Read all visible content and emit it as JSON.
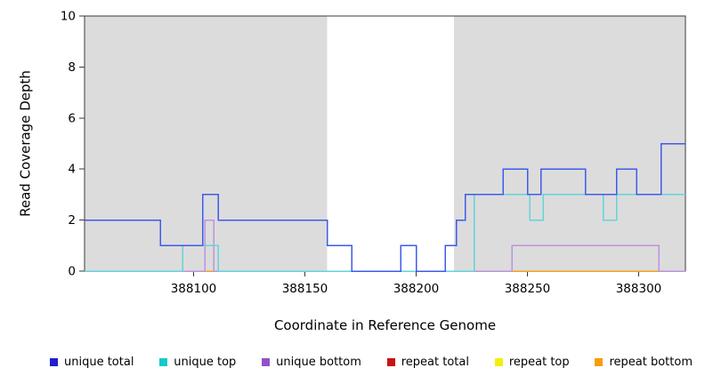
{
  "figure": {
    "y_axis_title": "Read Coverage Depth",
    "x_axis_title": "Coordinate in Reference Genome"
  },
  "chart_data": {
    "type": "line",
    "subtype": "step-coverage",
    "title": "",
    "xlabel": "Coordinate in Reference Genome",
    "ylabel": "Read Coverage Depth",
    "xlim": [
      388051,
      388321
    ],
    "ylim": [
      0,
      10
    ],
    "x_ticks": [
      388100,
      388150,
      388200,
      388250,
      388300
    ],
    "y_ticks": [
      0,
      2,
      4,
      6,
      8,
      10
    ],
    "grid": false,
    "legend_position": "bottom",
    "shaded_regions": [
      {
        "x0": 388051,
        "x1": 388160,
        "color": "#dcdcdc"
      },
      {
        "x0": 388217,
        "x1": 388321,
        "color": "#dcdcdc"
      }
    ],
    "series": [
      {
        "name": "unique total",
        "line_color": "#3e5be9",
        "legend_color": "#1f1fcc",
        "steps": [
          [
            388051,
            2
          ],
          [
            388085,
            1
          ],
          [
            388104,
            3
          ],
          [
            388111,
            2
          ],
          [
            388160,
            1
          ],
          [
            388171,
            0
          ],
          [
            388193,
            1
          ],
          [
            388200,
            0
          ],
          [
            388213,
            1
          ],
          [
            388218,
            2
          ],
          [
            388222,
            3
          ],
          [
            388239,
            4
          ],
          [
            388250,
            3
          ],
          [
            388256,
            4
          ],
          [
            388276,
            3
          ],
          [
            388290,
            4
          ],
          [
            388299,
            3
          ],
          [
            388310,
            5
          ]
        ]
      },
      {
        "name": "unique top",
        "line_color": "#63d4dc",
        "legend_color": "#15c9c9",
        "steps": [
          [
            388051,
            0
          ],
          [
            388095,
            1
          ],
          [
            388111,
            0
          ],
          [
            388226,
            3
          ],
          [
            388251,
            2
          ],
          [
            388257,
            3
          ],
          [
            388284,
            2
          ],
          [
            388290,
            3
          ]
        ]
      },
      {
        "name": "unique bottom",
        "line_color": "#bd93dd",
        "legend_color": "#9351c8",
        "steps": [
          [
            388051,
            0
          ],
          [
            388105,
            2
          ],
          [
            388109,
            0
          ],
          [
            388243,
            1
          ],
          [
            388309,
            0
          ]
        ]
      },
      {
        "name": "repeat total",
        "line_color": "#b03a3a",
        "legend_color": "#c81414",
        "steps": [
          [
            388051,
            0
          ]
        ]
      },
      {
        "name": "repeat top",
        "line_color": "#f0f00f",
        "legend_color": "#f0f00f",
        "steps": [
          [
            388051,
            0
          ]
        ]
      },
      {
        "name": "repeat bottom",
        "line_color": "#f5a11f",
        "legend_color": "#f59e0b",
        "steps": [
          [
            388051,
            0
          ]
        ]
      }
    ]
  }
}
